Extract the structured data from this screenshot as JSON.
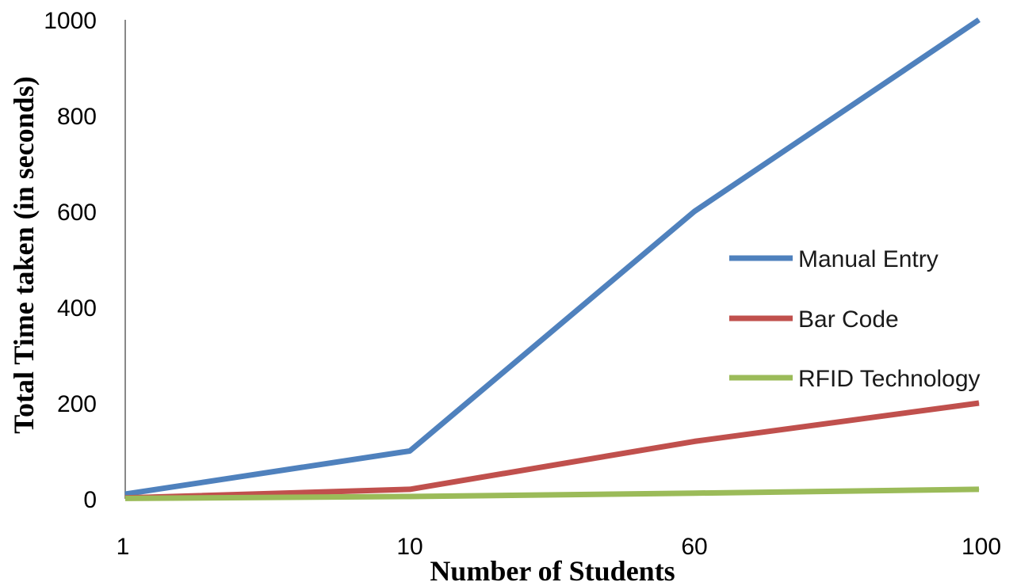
{
  "chart_data": {
    "type": "line",
    "title": "",
    "xlabel": "Number of Students",
    "ylabel": "Total Time taken (in seconds)",
    "categories": [
      "1",
      "10",
      "60",
      "100"
    ],
    "ylim": [
      0,
      1000
    ],
    "yticks": [
      0,
      200,
      400,
      600,
      800,
      1000
    ],
    "grid": false,
    "legend_position": "right",
    "series": [
      {
        "name": "Manual Entry",
        "color": "#4f81bd",
        "values": [
          10,
          100,
          600,
          1000
        ]
      },
      {
        "name": "Bar Code",
        "color": "#c0504d",
        "values": [
          2,
          20,
          120,
          200
        ]
      },
      {
        "name": "RFID Technology",
        "color": "#9bbb59",
        "values": [
          1,
          5,
          12,
          20
        ]
      }
    ]
  }
}
